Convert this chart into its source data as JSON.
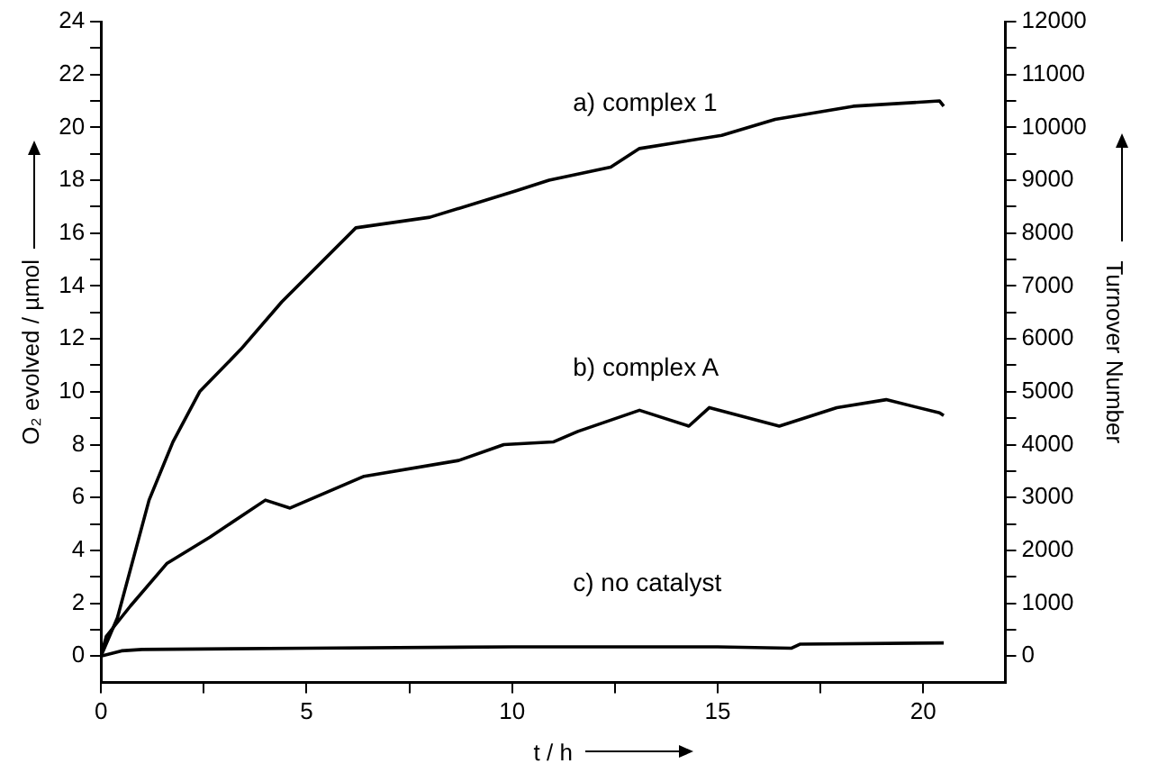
{
  "chart_data": {
    "type": "line",
    "xlabel": "t / h",
    "ylabel": "O₂ evolved / µmol",
    "y2label": "Turnover Number",
    "xlim": [
      0,
      22
    ],
    "xticks": [
      0,
      {
        "value": 2.5,
        "label": null
      },
      5,
      {
        "value": 7.5,
        "label": null
      },
      10,
      {
        "value": 12.5,
        "label": null
      },
      15,
      {
        "value": 17.5,
        "label": null
      },
      20
    ],
    "ylim": [
      -1,
      24
    ],
    "yticks": [
      0,
      {
        "value": 1,
        "label": null
      },
      2,
      {
        "value": 3,
        "label": null
      },
      4,
      {
        "value": 5,
        "label": null
      },
      6,
      {
        "value": 7,
        "label": null
      },
      8,
      {
        "value": 9,
        "label": null
      },
      10,
      {
        "value": 11,
        "label": null
      },
      12,
      {
        "value": 13,
        "label": null
      },
      14,
      {
        "value": 15,
        "label": null
      },
      16,
      {
        "value": 17,
        "label": null
      },
      18,
      {
        "value": 19,
        "label": null
      },
      20,
      {
        "value": 21,
        "label": null
      },
      22,
      {
        "value": 23,
        "label": null
      },
      24
    ],
    "y2lim": [
      -500,
      12000
    ],
    "y2ticks": [
      0,
      {
        "value": 500,
        "label": null
      },
      1000,
      {
        "value": 1500,
        "label": null
      },
      2000,
      {
        "value": 2500,
        "label": null
      },
      3000,
      {
        "value": 3500,
        "label": null
      },
      4000,
      {
        "value": 4500,
        "label": null
      },
      5000,
      {
        "value": 5500,
        "label": null
      },
      6000,
      {
        "value": 6500,
        "label": null
      },
      7000,
      {
        "value": 7500,
        "label": null
      },
      8000,
      {
        "value": 8500,
        "label": null
      },
      9000,
      {
        "value": 9500,
        "label": null
      },
      10000,
      {
        "value": 10500,
        "label": null
      },
      11000,
      {
        "value": 11500,
        "label": null
      },
      12000
    ],
    "grid": false,
    "legend": false,
    "marker": "none",
    "line_style": "solid",
    "series": [
      {
        "name": "a) complex 1",
        "color": "#000000",
        "x": [
          0,
          0.4,
          1.17,
          1.75,
          2.4,
          2.65,
          3.4,
          4.4,
          6.2,
          8.0,
          10.1,
          10.9,
          12.4,
          13.1,
          15.1,
          16.4,
          18.3,
          20.4,
          20.5
        ],
        "values": [
          0,
          1.45,
          5.9,
          8.1,
          10.0,
          10.4,
          11.6,
          13.4,
          16.2,
          16.6,
          17.6,
          18.0,
          18.5,
          19.2,
          19.7,
          20.3,
          20.8,
          21.0,
          20.8
        ]
      },
      {
        "name": "b) complex A",
        "color": "#000000",
        "x": [
          0,
          0.13,
          0.72,
          1.6,
          2.65,
          4.0,
          4.6,
          6.4,
          8.7,
          9.8,
          11.0,
          11.6,
          13.1,
          14.3,
          14.8,
          16.5,
          17.9,
          19.1,
          20.4,
          20.5
        ],
        "values": [
          0,
          0.75,
          1.9,
          3.5,
          4.5,
          5.9,
          5.6,
          6.8,
          7.4,
          8.0,
          8.1,
          8.5,
          9.3,
          8.7,
          9.4,
          8.7,
          9.4,
          9.7,
          9.2,
          9.1
        ]
      },
      {
        "name": "c) no catalyst",
        "color": "#000000",
        "x": [
          0,
          0.5,
          1,
          5,
          10,
          15,
          16.8,
          17,
          20.5
        ],
        "values": [
          0,
          0.2,
          0.25,
          0.3,
          0.35,
          0.35,
          0.3,
          0.45,
          0.5
        ]
      }
    ]
  }
}
